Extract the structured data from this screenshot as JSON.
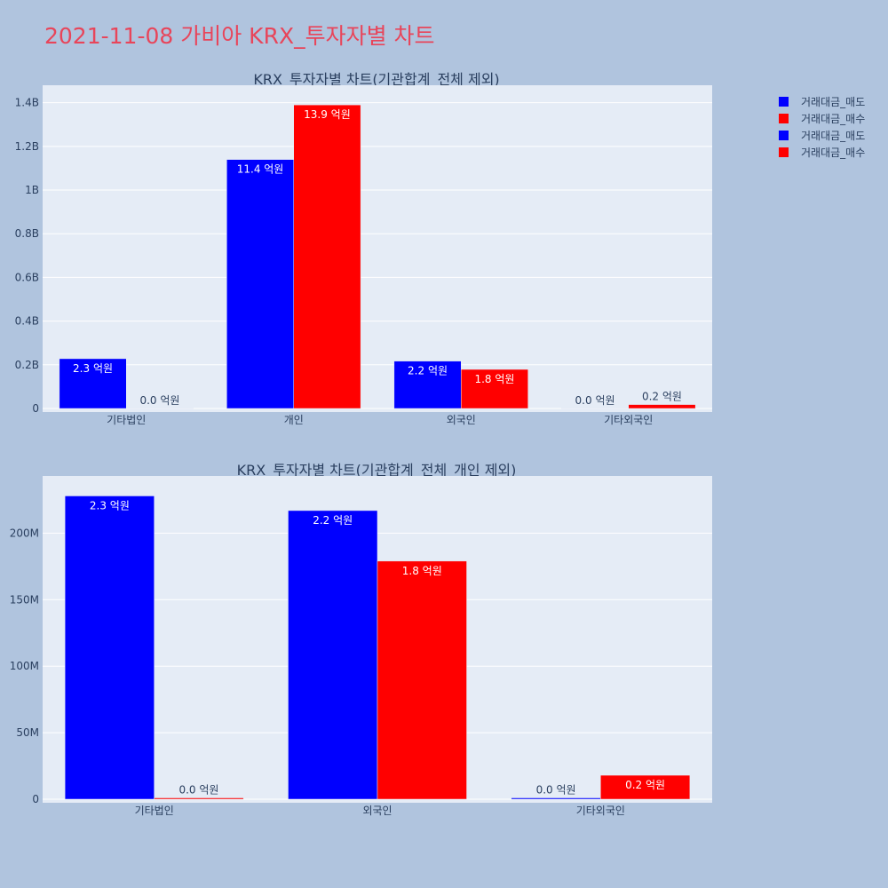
{
  "title": "2021-11-08 가비아 KRX_투자자별 차트",
  "colors": {
    "sell": "#0000ff",
    "buy": "#ff0000",
    "title": "#e8455a"
  },
  "legend": [
    {
      "label": "거래대금_매도",
      "color": "#0000ff"
    },
    {
      "label": "거래대금_매수",
      "color": "#ff0000"
    },
    {
      "label": "거래대금_매도",
      "color": "#0000ff"
    },
    {
      "label": "거래대금_매수",
      "color": "#ff0000"
    }
  ],
  "chart_data": [
    {
      "type": "bar",
      "title": "KRX_투자자별 차트(기관합계_전체 제외)",
      "categories": [
        "기타법인",
        "개인",
        "외국인",
        "기타외국인"
      ],
      "ylim": [
        0,
        1480000000
      ],
      "yticks": [
        0,
        200000000,
        400000000,
        600000000,
        800000000,
        1000000000,
        1200000000,
        1400000000
      ],
      "ytick_labels": [
        "0",
        "0.2B",
        "0.4B",
        "0.6B",
        "0.8B",
        "1B",
        "1.2B",
        "1.4B"
      ],
      "series": [
        {
          "name": "거래대금_매도",
          "values": [
            228000000,
            1140000000,
            217000000,
            1000000
          ],
          "labels": [
            "2.3 억원",
            "11.4 억원",
            "2.2 억원",
            "0.0 억원"
          ]
        },
        {
          "name": "거래대금_매수",
          "values": [
            1000000,
            1390000000,
            179000000,
            18000000
          ],
          "labels": [
            "0.0 억원",
            "13.9 억원",
            "1.8 억원",
            "0.2 억원"
          ]
        }
      ]
    },
    {
      "type": "bar",
      "title": "KRX_투자자별 차트(기관합계_전체_개인 제외)",
      "categories": [
        "기타법인",
        "외국인",
        "기타외국인"
      ],
      "ylim": [
        0,
        243000000
      ],
      "yticks": [
        0,
        50000000,
        100000000,
        150000000,
        200000000
      ],
      "ytick_labels": [
        "0",
        "50M",
        "100M",
        "150M",
        "200M"
      ],
      "series": [
        {
          "name": "거래대금_매도",
          "values": [
            228000000,
            217000000,
            1000000
          ],
          "labels": [
            "2.3 억원",
            "2.2 억원",
            "0.0 억원"
          ]
        },
        {
          "name": "거래대금_매수",
          "values": [
            1000000,
            179000000,
            18000000
          ],
          "labels": [
            "0.0 억원",
            "1.8 억원",
            "0.2 억원"
          ]
        }
      ]
    }
  ]
}
